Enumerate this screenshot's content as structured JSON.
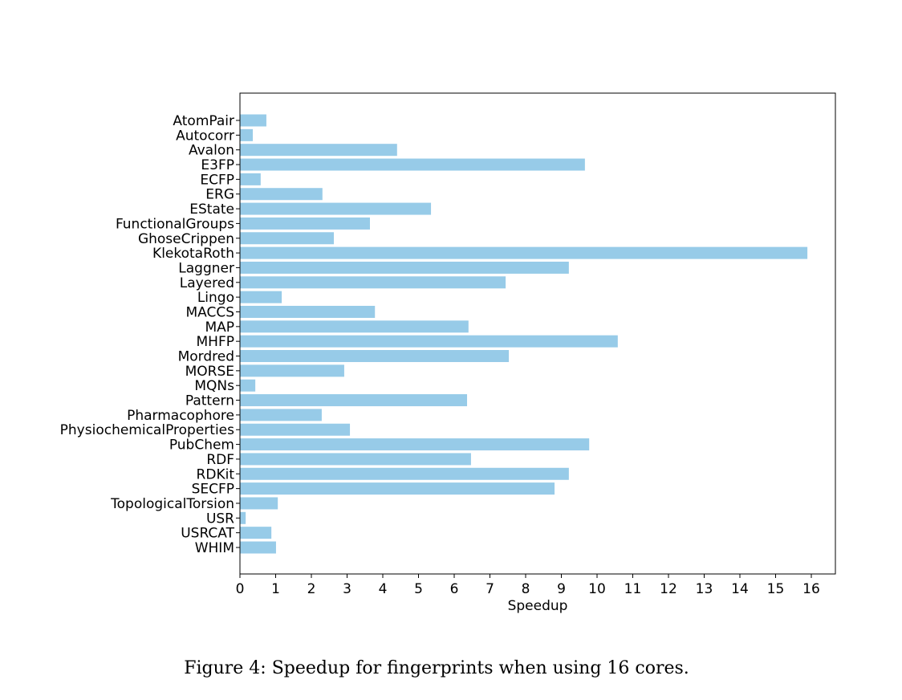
{
  "chart_data": {
    "type": "bar",
    "orientation": "horizontal",
    "categories": [
      "AtomPair",
      "Autocorr",
      "Avalon",
      "E3FP",
      "ECFP",
      "ERG",
      "EState",
      "FunctionalGroups",
      "GhoseCrippen",
      "KlekotaRoth",
      "Laggner",
      "Layered",
      "Lingo",
      "MACCS",
      "MAP",
      "MHFP",
      "Mordred",
      "MORSE",
      "MQNs",
      "Pattern",
      "Pharmacophore",
      "PhysiochemicalProperties",
      "PubChem",
      "RDF",
      "RDKit",
      "SECFP",
      "TopologicalTorsion",
      "USR",
      "USRCAT",
      "WHIM"
    ],
    "values": [
      0.74,
      0.36,
      4.4,
      9.66,
      0.58,
      2.31,
      5.35,
      3.64,
      2.63,
      15.89,
      9.21,
      7.44,
      1.17,
      3.78,
      6.4,
      10.58,
      7.53,
      2.92,
      0.43,
      6.36,
      2.29,
      3.08,
      9.78,
      6.47,
      9.21,
      8.81,
      1.06,
      0.16,
      0.88,
      1.01
    ],
    "xlabel": "Speedup",
    "ylabel": "",
    "xlim": [
      0,
      16.7
    ],
    "xticks": [
      0,
      1,
      2,
      3,
      4,
      5,
      6,
      7,
      8,
      9,
      10,
      11,
      12,
      13,
      14,
      15,
      16
    ],
    "grid": false,
    "bar_color": "#97cbe8"
  },
  "caption": "Figure 4: Speedup for fingerprints when using 16 cores."
}
